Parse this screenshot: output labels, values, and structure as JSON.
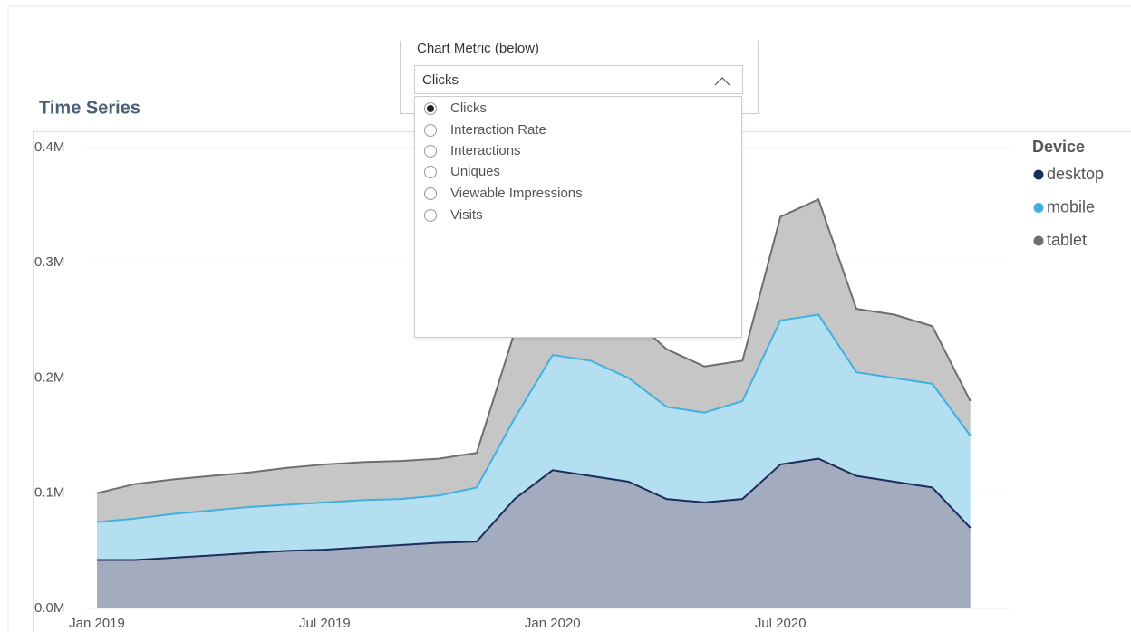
{
  "chart_data": {
    "type": "stacked_area",
    "title": "Time Series",
    "legend_title": "Device",
    "legend_position": "right",
    "x": [
      "2019-01",
      "2019-02",
      "2019-03",
      "2019-04",
      "2019-05",
      "2019-06",
      "2019-07",
      "2019-08",
      "2019-09",
      "2019-10",
      "2019-11",
      "2019-12",
      "2020-01",
      "2020-02",
      "2020-03",
      "2020-04",
      "2020-05",
      "2020-06",
      "2020-07",
      "2020-08",
      "2020-09",
      "2020-10",
      "2020-11",
      "2020-12"
    ],
    "xticks": [
      {
        "value": "2019-01",
        "label": "Jan 2019"
      },
      {
        "value": "2019-07",
        "label": "Jul 2019"
      },
      {
        "value": "2020-01",
        "label": "Jan 2020"
      },
      {
        "value": "2020-07",
        "label": "Jul 2020"
      }
    ],
    "series": [
      {
        "name": "desktop",
        "color": "#1b2d5c",
        "fill": "#a3abbf",
        "values": [
          42000,
          42000,
          44000,
          46000,
          48000,
          50000,
          51000,
          53000,
          55000,
          57000,
          58000,
          95000,
          120000,
          115000,
          110000,
          95000,
          92000,
          95000,
          125000,
          130000,
          115000,
          110000,
          105000,
          70000
        ]
      },
      {
        "name": "mobile",
        "color": "#41b0e0",
        "fill": "#b3dff1",
        "values": [
          33000,
          36000,
          38000,
          39000,
          40000,
          40000,
          41000,
          41000,
          40000,
          41000,
          47000,
          70000,
          100000,
          100000,
          90000,
          80000,
          78000,
          85000,
          125000,
          125000,
          90000,
          90000,
          90000,
          80000
        ]
      },
      {
        "name": "tablet",
        "color": "#6e6e6e",
        "fill": "#c6c6c6",
        "values": [
          25000,
          30000,
          30000,
          30000,
          30000,
          32000,
          33000,
          33000,
          33000,
          32000,
          30000,
          75000,
          55000,
          55000,
          55000,
          50000,
          40000,
          35000,
          90000,
          100000,
          55000,
          55000,
          50000,
          30000
        ]
      }
    ],
    "ylim": [
      0,
      400000
    ],
    "yticks": [
      {
        "value": 0,
        "label": "0.0M"
      },
      {
        "value": 100000,
        "label": "0.1M"
      },
      {
        "value": 200000,
        "label": "0.2M"
      },
      {
        "value": 300000,
        "label": "0.3M"
      },
      {
        "value": 400000,
        "label": "0.4M"
      }
    ],
    "grid": true
  },
  "slicer": {
    "title": "Chart Metric (below)",
    "selected": "Clicks",
    "options": [
      "Clicks",
      "Interaction Rate",
      "Interactions",
      "Uniques",
      "Viewable Impressions",
      "Visits"
    ],
    "selected_index": 0
  }
}
